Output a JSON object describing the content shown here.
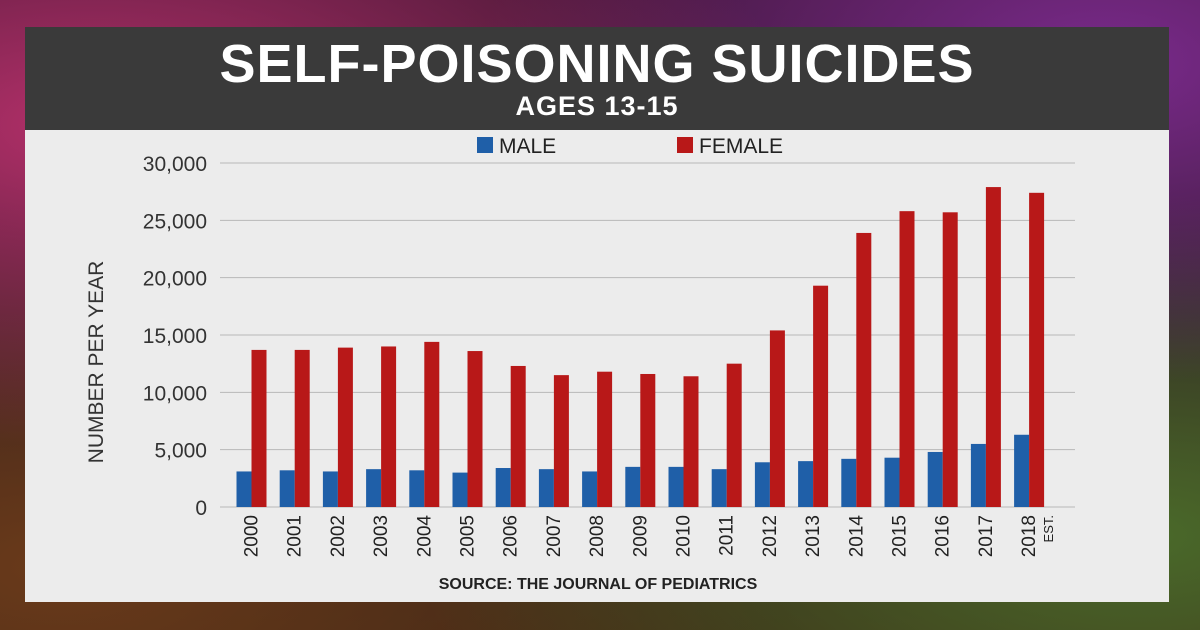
{
  "title": "SELF-POISONING SUICIDES",
  "subtitle": "AGES 13-15",
  "source": "SOURCE: THE JOURNAL OF PEDIATRICS",
  "colors": {
    "male": "#1f5fa8",
    "female": "#b81818",
    "header": "#3a3a3a",
    "plot_bg": "#ececec"
  },
  "chart_data": {
    "type": "bar",
    "title": "SELF-POISONING SUICIDES",
    "subtitle": "AGES 13-15",
    "xlabel": "",
    "ylabel": "NUMBER PER YEAR",
    "ylim": [
      0,
      30000
    ],
    "yticks": [
      0,
      5000,
      10000,
      15000,
      20000,
      25000,
      30000
    ],
    "ytick_labels": [
      "0",
      "5,000",
      "10,000",
      "15,000",
      "20,000",
      "25,000",
      "30,000"
    ],
    "grid": true,
    "legend_placement": "top-center",
    "categories": [
      "2000",
      "2001",
      "2002",
      "2003",
      "2004",
      "2005",
      "2006",
      "2007",
      "2008",
      "2009",
      "2010",
      "2011",
      "2012",
      "2013",
      "2014",
      "2015",
      "2016",
      "2017",
      "2018"
    ],
    "category_notes": {
      "2018": "EST."
    },
    "series": [
      {
        "name": "MALE",
        "values": [
          3100,
          3200,
          3100,
          3300,
          3200,
          3000,
          3400,
          3300,
          3100,
          3500,
          3500,
          3300,
          3900,
          4000,
          4200,
          4300,
          4800,
          5500,
          6300
        ]
      },
      {
        "name": "FEMALE",
        "values": [
          13700,
          13700,
          13900,
          14000,
          14400,
          13600,
          12300,
          11500,
          11800,
          11600,
          11400,
          12500,
          15400,
          19300,
          23900,
          25800,
          25700,
          27900,
          27400
        ]
      }
    ]
  }
}
